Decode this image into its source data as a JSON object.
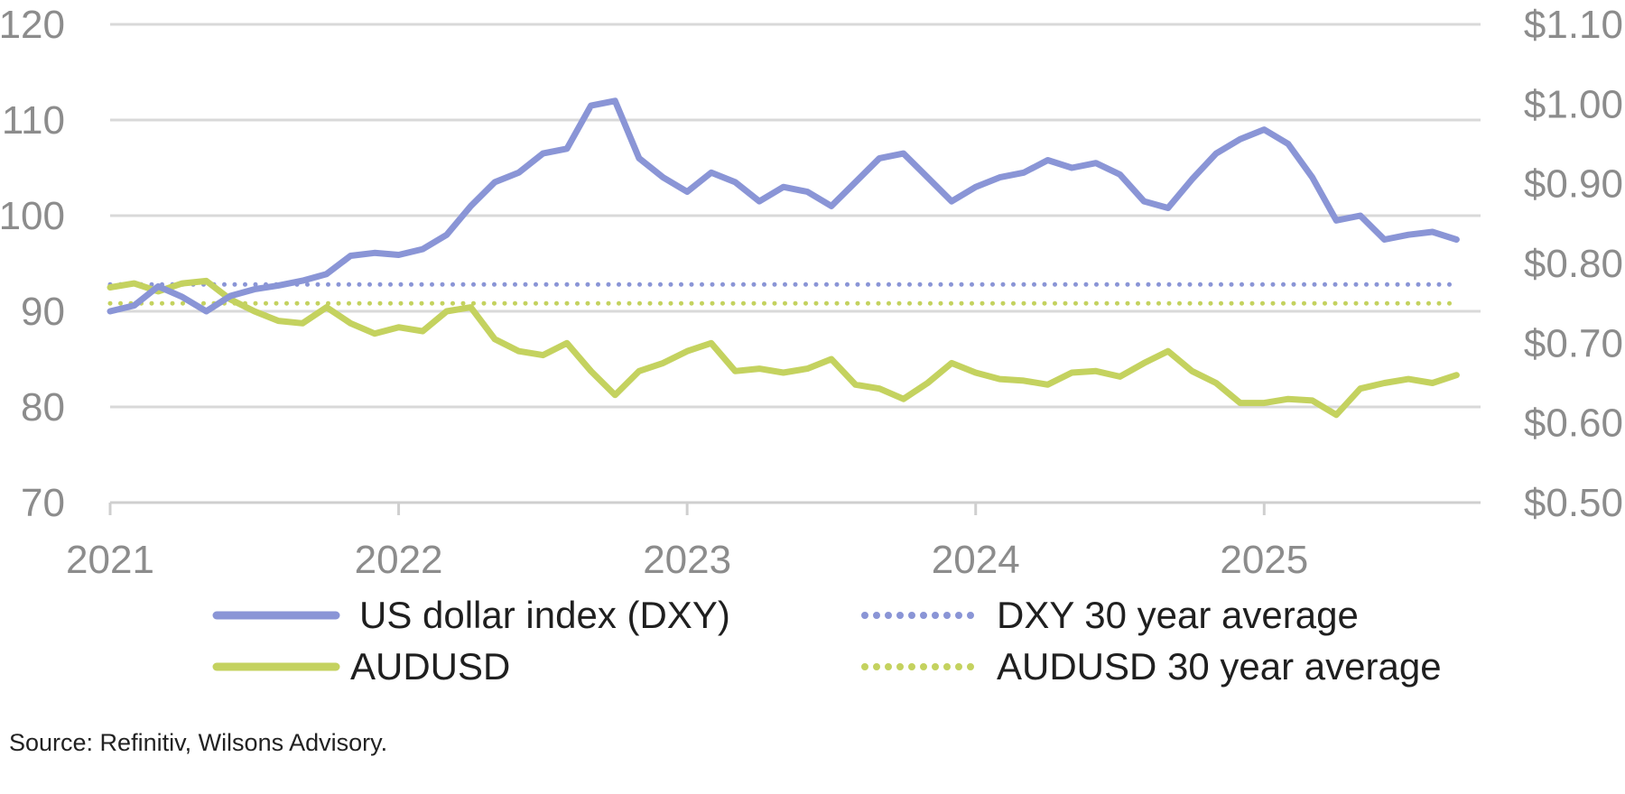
{
  "chart_data": {
    "type": "line",
    "x_axis": {
      "ticks": [
        "2021",
        "2022",
        "2023",
        "2024",
        "2025"
      ],
      "range": [
        "2021-01",
        "2025-09"
      ]
    },
    "y_left": {
      "ticks": [
        "120",
        "110",
        "100",
        "90",
        "80",
        "70"
      ],
      "ylim": [
        70,
        120
      ]
    },
    "y_right": {
      "ticks": [
        "$1.10",
        "$1.00",
        "$0.90",
        "$0.80",
        "$0.70",
        "$0.60",
        "$0.50"
      ],
      "ylim": [
        0.5,
        1.1
      ]
    },
    "grid": "horizontal",
    "legend_position": "bottom",
    "series": [
      {
        "name": "US dollar index (DXY)",
        "axis": "left",
        "color": "#8a95d6",
        "style": "solid",
        "points": [
          [
            "2021-01",
            90.0
          ],
          [
            "2021-02",
            90.6
          ],
          [
            "2021-03",
            92.6
          ],
          [
            "2021-04",
            91.5
          ],
          [
            "2021-05",
            90.0
          ],
          [
            "2021-06",
            91.6
          ],
          [
            "2021-07",
            92.3
          ],
          [
            "2021-08",
            92.7
          ],
          [
            "2021-09",
            93.2
          ],
          [
            "2021-10",
            93.9
          ],
          [
            "2021-11",
            95.8
          ],
          [
            "2021-12",
            96.1
          ],
          [
            "2022-01",
            95.9
          ],
          [
            "2022-02",
            96.5
          ],
          [
            "2022-03",
            98.0
          ],
          [
            "2022-04",
            101.0
          ],
          [
            "2022-05",
            103.5
          ],
          [
            "2022-06",
            104.5
          ],
          [
            "2022-07",
            106.5
          ],
          [
            "2022-08",
            107.0
          ],
          [
            "2022-09",
            111.5
          ],
          [
            "2022-10",
            112.0
          ],
          [
            "2022-11",
            106.0
          ],
          [
            "2022-12",
            104.0
          ],
          [
            "2023-01",
            102.5
          ],
          [
            "2023-02",
            104.5
          ],
          [
            "2023-03",
            103.5
          ],
          [
            "2023-04",
            101.5
          ],
          [
            "2023-05",
            103.0
          ],
          [
            "2023-06",
            102.5
          ],
          [
            "2023-07",
            101.0
          ],
          [
            "2023-08",
            103.5
          ],
          [
            "2023-09",
            106.0
          ],
          [
            "2023-10",
            106.5
          ],
          [
            "2023-11",
            104.0
          ],
          [
            "2023-12",
            101.5
          ],
          [
            "2024-01",
            103.0
          ],
          [
            "2024-02",
            104.0
          ],
          [
            "2024-03",
            104.5
          ],
          [
            "2024-04",
            105.8
          ],
          [
            "2024-05",
            105.0
          ],
          [
            "2024-06",
            105.5
          ],
          [
            "2024-07",
            104.3
          ],
          [
            "2024-08",
            101.5
          ],
          [
            "2024-09",
            100.8
          ],
          [
            "2024-10",
            103.8
          ],
          [
            "2024-11",
            106.5
          ],
          [
            "2024-12",
            108.0
          ],
          [
            "2025-01",
            109.0
          ],
          [
            "2025-02",
            107.5
          ],
          [
            "2025-03",
            104.0
          ],
          [
            "2025-04",
            99.5
          ],
          [
            "2025-05",
            100.0
          ],
          [
            "2025-06",
            97.5
          ],
          [
            "2025-07",
            98.0
          ],
          [
            "2025-08",
            98.3
          ],
          [
            "2025-09",
            97.5
          ]
        ]
      },
      {
        "name": "DXY 30 year average",
        "axis": "left",
        "color": "#8a95d6",
        "style": "dotted",
        "points": [
          [
            "2021-01",
            92.8
          ],
          [
            "2025-09",
            92.8
          ]
        ]
      },
      {
        "name": "AUDUSD",
        "axis": "right",
        "color": "#c4d25f",
        "style": "solid",
        "points": [
          [
            "2021-01",
            0.77
          ],
          [
            "2021-02",
            0.775
          ],
          [
            "2021-03",
            0.765
          ],
          [
            "2021-04",
            0.775
          ],
          [
            "2021-05",
            0.778
          ],
          [
            "2021-06",
            0.755
          ],
          [
            "2021-07",
            0.74
          ],
          [
            "2021-08",
            0.728
          ],
          [
            "2021-09",
            0.725
          ],
          [
            "2021-10",
            0.745
          ],
          [
            "2021-11",
            0.725
          ],
          [
            "2021-12",
            0.712
          ],
          [
            "2022-01",
            0.72
          ],
          [
            "2022-02",
            0.715
          ],
          [
            "2022-03",
            0.74
          ],
          [
            "2022-04",
            0.745
          ],
          [
            "2022-05",
            0.705
          ],
          [
            "2022-06",
            0.69
          ],
          [
            "2022-07",
            0.685
          ],
          [
            "2022-08",
            0.7
          ],
          [
            "2022-09",
            0.665
          ],
          [
            "2022-10",
            0.635
          ],
          [
            "2022-11",
            0.665
          ],
          [
            "2022-12",
            0.675
          ],
          [
            "2023-01",
            0.69
          ],
          [
            "2023-02",
            0.7
          ],
          [
            "2023-03",
            0.665
          ],
          [
            "2023-04",
            0.668
          ],
          [
            "2023-05",
            0.663
          ],
          [
            "2023-06",
            0.668
          ],
          [
            "2023-07",
            0.68
          ],
          [
            "2023-08",
            0.648
          ],
          [
            "2023-09",
            0.643
          ],
          [
            "2023-10",
            0.63
          ],
          [
            "2023-11",
            0.65
          ],
          [
            "2023-12",
            0.675
          ],
          [
            "2024-01",
            0.663
          ],
          [
            "2024-02",
            0.655
          ],
          [
            "2024-03",
            0.653
          ],
          [
            "2024-04",
            0.648
          ],
          [
            "2024-05",
            0.663
          ],
          [
            "2024-06",
            0.665
          ],
          [
            "2024-07",
            0.658
          ],
          [
            "2024-08",
            0.675
          ],
          [
            "2024-09",
            0.69
          ],
          [
            "2024-10",
            0.665
          ],
          [
            "2024-11",
            0.65
          ],
          [
            "2024-12",
            0.625
          ],
          [
            "2025-01",
            0.625
          ],
          [
            "2025-02",
            0.63
          ],
          [
            "2025-03",
            0.628
          ],
          [
            "2025-04",
            0.61
          ],
          [
            "2025-05",
            0.643
          ],
          [
            "2025-06",
            0.65
          ],
          [
            "2025-07",
            0.655
          ],
          [
            "2025-08",
            0.65
          ],
          [
            "2025-09",
            0.66
          ]
        ]
      },
      {
        "name": "AUDUSD 30 year average",
        "axis": "right",
        "color": "#c4d25f",
        "style": "dotted",
        "points": [
          [
            "2021-01",
            0.75
          ],
          [
            "2025-09",
            0.75
          ]
        ]
      }
    ],
    "legend": [
      {
        "label": "US dollar index (DXY)",
        "color": "#8a95d6",
        "style": "solid"
      },
      {
        "label": "DXY 30 year average",
        "color": "#8a95d6",
        "style": "dotted"
      },
      {
        "label": "AUDUSD",
        "color": "#c4d25f",
        "style": "solid"
      },
      {
        "label": "AUDUSD 30 year average",
        "color": "#c4d25f",
        "style": "dotted"
      }
    ]
  },
  "source": "Source: Refinitiv, Wilsons Advisory."
}
